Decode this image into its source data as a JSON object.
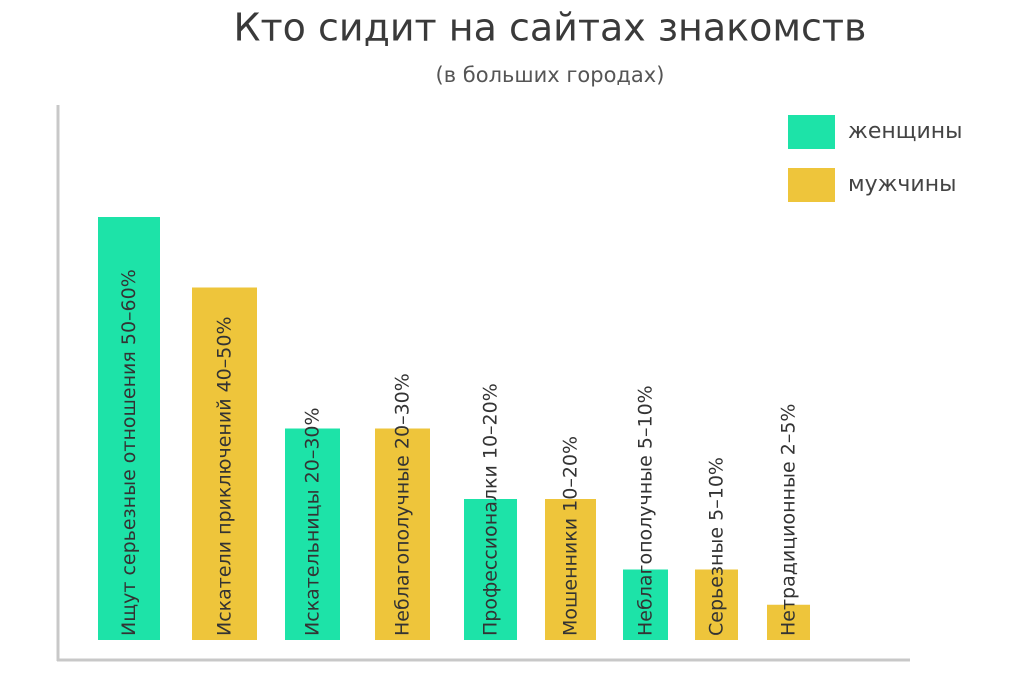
{
  "chart_data": {
    "type": "bar",
    "title": "Кто сидит на сайтах знакомств",
    "subtitle": "(в больших городах)",
    "categories": [
      "Ищут серьезные отношения",
      "Искатели приключений",
      "Искательницы",
      "Неблагополучные",
      "Профессионалки",
      "Мошенники",
      "Неблагополучные",
      "Серьезные",
      "Нетрадиционные"
    ],
    "series": [
      {
        "name": "женщины",
        "color": "#1de3a8",
        "values": [
          60,
          null,
          30,
          null,
          20,
          null,
          10,
          null,
          null
        ],
        "value_labels": [
          "50–60%",
          null,
          "20–30%",
          null,
          "10–20%",
          null,
          "5–10%",
          null,
          null
        ]
      },
      {
        "name": "мужчины",
        "color": "#eec53b",
        "values": [
          null,
          50,
          null,
          30,
          null,
          20,
          null,
          10,
          5
        ],
        "value_labels": [
          null,
          "40–50%",
          null,
          "20–30%",
          null,
          "10–20%",
          null,
          "5–10%",
          "2–5%"
        ]
      }
    ],
    "legend": "top-right"
  }
}
